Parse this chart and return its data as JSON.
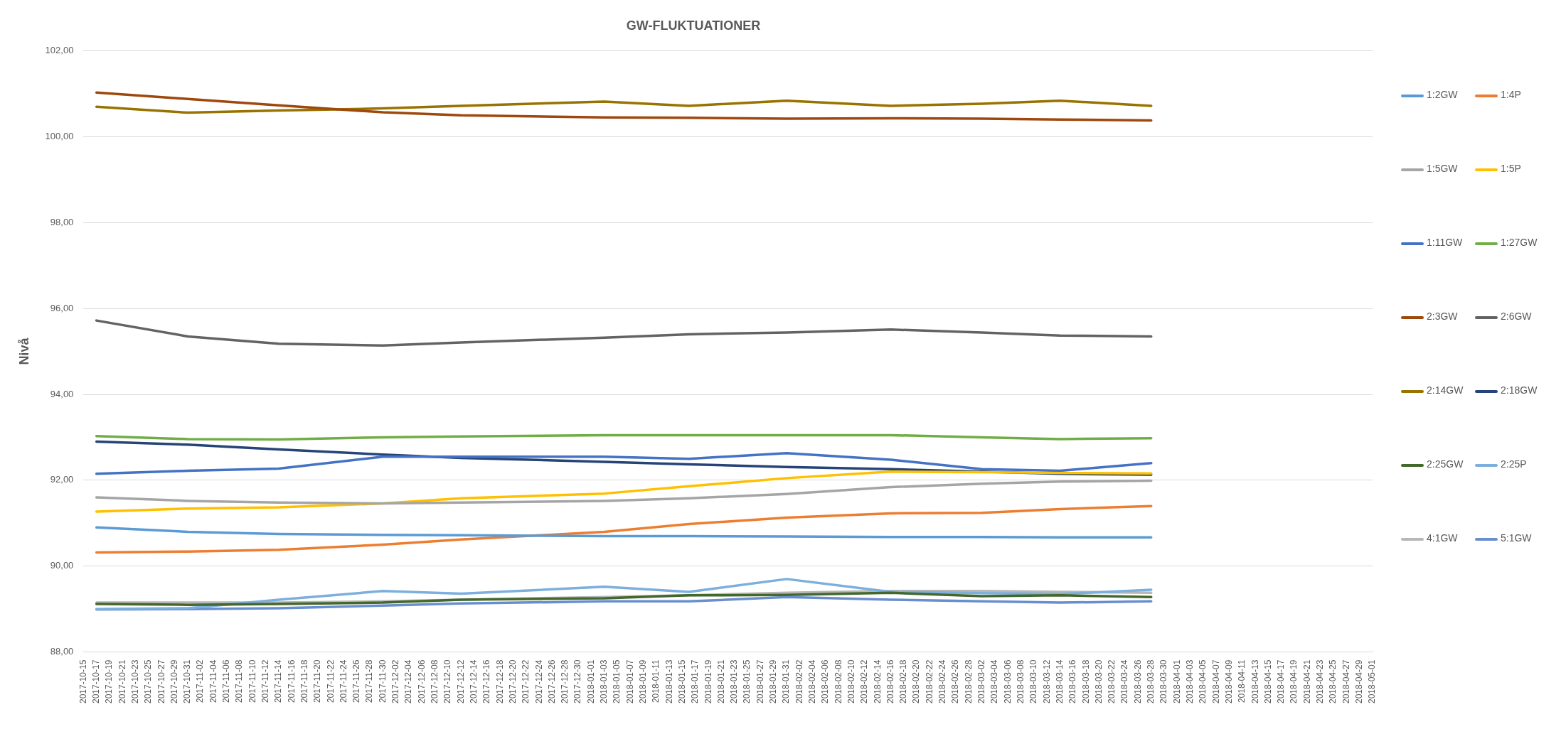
{
  "chart_data": {
    "type": "line",
    "title": "GW-FLUKTUATIONER",
    "ylabel": "Nivå",
    "x": [
      "2017-10-17",
      "2017-10-31",
      "2017-11-14",
      "2017-11-30",
      "2017-12-12",
      "2018-01-03",
      "2018-01-16",
      "2018-01-31",
      "2018-02-16",
      "2018-03-02",
      "2018-03-14",
      "2018-03-28"
    ],
    "xlim": [
      "2017-10-15",
      "2018-05-01"
    ],
    "xticks": [
      "2017-10-15",
      "2017-10-17",
      "2017-10-19",
      "2017-10-21",
      "2017-10-23",
      "2017-10-25",
      "2017-10-27",
      "2017-10-29",
      "2017-10-31",
      "2017-11-02",
      "2017-11-04",
      "2017-11-06",
      "2017-11-08",
      "2017-11-10",
      "2017-11-12",
      "2017-11-14",
      "2017-11-16",
      "2017-11-18",
      "2017-11-20",
      "2017-11-22",
      "2017-11-24",
      "2017-11-26",
      "2017-11-28",
      "2017-11-30",
      "2017-12-02",
      "2017-12-04",
      "2017-12-06",
      "2017-12-08",
      "2017-12-10",
      "2017-12-12",
      "2017-12-14",
      "2017-12-16",
      "2017-12-18",
      "2017-12-20",
      "2017-12-22",
      "2017-12-24",
      "2017-12-26",
      "2017-12-28",
      "2017-12-30",
      "2018-01-01",
      "2018-01-03",
      "2018-01-05",
      "2018-01-07",
      "2018-01-09",
      "2018-01-11",
      "2018-01-13",
      "2018-01-15",
      "2018-01-17",
      "2018-01-19",
      "2018-01-21",
      "2018-01-23",
      "2018-01-25",
      "2018-01-27",
      "2018-01-29",
      "2018-01-31",
      "2018-02-02",
      "2018-02-04",
      "2018-02-06",
      "2018-02-08",
      "2018-02-10",
      "2018-02-12",
      "2018-02-14",
      "2018-02-16",
      "2018-02-18",
      "2018-02-20",
      "2018-02-22",
      "2018-02-24",
      "2018-02-26",
      "2018-02-28",
      "2018-03-02",
      "2018-03-04",
      "2018-03-06",
      "2018-03-08",
      "2018-03-10",
      "2018-03-12",
      "2018-03-14",
      "2018-03-16",
      "2018-03-18",
      "2018-03-20",
      "2018-03-22",
      "2018-03-24",
      "2018-03-26",
      "2018-03-28",
      "2018-03-30",
      "2018-04-01",
      "2018-04-03",
      "2018-04-05",
      "2018-04-07",
      "2018-04-09",
      "2018-04-11",
      "2018-04-13",
      "2018-04-15",
      "2018-04-17",
      "2018-04-19",
      "2018-04-21",
      "2018-04-23",
      "2018-04-25",
      "2018-04-27",
      "2018-04-29",
      "2018-05-01"
    ],
    "ylim": [
      88,
      102
    ],
    "yticks": [
      {
        "value": 88,
        "label": "88,00"
      },
      {
        "value": 90,
        "label": "90,00"
      },
      {
        "value": 92,
        "label": "92,00"
      },
      {
        "value": 94,
        "label": "94,00"
      },
      {
        "value": 96,
        "label": "96,00"
      },
      {
        "value": 98,
        "label": "98,00"
      },
      {
        "value": 100,
        "label": "100,00"
      },
      {
        "value": 102,
        "label": "102,00"
      }
    ],
    "grid": "y",
    "legend": "right",
    "marker": "none",
    "line_style": "solid",
    "series": [
      {
        "name": "1:2GW",
        "color": "#5b9bd5",
        "values": [
          90.9,
          90.8,
          90.75,
          90.73,
          90.72,
          90.7,
          90.7,
          90.69,
          90.68,
          90.68,
          90.67,
          90.67
        ]
      },
      {
        "name": "1:4P",
        "color": "#ed7d31",
        "values": [
          90.32,
          90.34,
          90.38,
          90.5,
          90.62,
          90.8,
          90.98,
          91.13,
          91.23,
          91.24,
          91.33,
          91.4
        ]
      },
      {
        "name": "1:5GW",
        "color": "#a5a5a5",
        "values": [
          91.6,
          91.52,
          91.48,
          91.46,
          91.48,
          91.52,
          91.58,
          91.68,
          91.84,
          91.92,
          91.97,
          91.99
        ]
      },
      {
        "name": "1:5P",
        "color": "#ffc000",
        "values": [
          91.27,
          91.34,
          91.37,
          91.46,
          91.58,
          91.69,
          91.86,
          92.05,
          92.2,
          92.19,
          92.17,
          92.16
        ]
      },
      {
        "name": "1:11GW",
        "color": "#4472c4",
        "values": [
          92.15,
          92.22,
          92.27,
          92.55,
          92.55,
          92.55,
          92.5,
          92.63,
          92.48,
          92.26,
          92.22,
          92.4
        ]
      },
      {
        "name": "1:27GW",
        "color": "#70ad47",
        "values": [
          93.03,
          92.96,
          92.95,
          93.0,
          93.02,
          93.05,
          93.05,
          93.05,
          93.05,
          93.0,
          92.96,
          92.98
        ]
      },
      {
        "name": "2:3GW",
        "color": "#9e480e",
        "values": [
          101.03,
          100.88,
          100.73,
          100.57,
          100.5,
          100.45,
          100.44,
          100.42,
          100.43,
          100.42,
          100.4,
          100.38
        ]
      },
      {
        "name": "2:6GW",
        "color": "#636363",
        "values": [
          95.72,
          95.35,
          95.18,
          95.14,
          95.21,
          95.32,
          95.4,
          95.44,
          95.51,
          95.44,
          95.37,
          95.35
        ]
      },
      {
        "name": "2:14GW",
        "color": "#997300",
        "values": [
          100.7,
          100.56,
          100.61,
          100.66,
          100.72,
          100.82,
          100.72,
          100.84,
          100.72,
          100.77,
          100.84,
          100.72
        ]
      },
      {
        "name": "2:18GW",
        "color": "#264478",
        "values": [
          92.9,
          92.83,
          92.72,
          92.6,
          92.52,
          92.43,
          92.37,
          92.31,
          92.26,
          92.2,
          92.15,
          92.13
        ]
      },
      {
        "name": "2:25GW",
        "color": "#43682b",
        "values": [
          89.12,
          89.1,
          89.12,
          89.15,
          89.22,
          89.25,
          89.32,
          89.33,
          89.38,
          89.3,
          89.32,
          89.28
        ]
      },
      {
        "name": "2:25P",
        "color": "#7cafdd",
        "values": [
          89.0,
          89.02,
          89.22,
          89.42,
          89.36,
          89.52,
          89.4,
          89.7,
          89.4,
          89.37,
          89.35,
          89.45
        ]
      },
      {
        "name": "4:1GW",
        "color": "#b7b7b7",
        "values": [
          89.15,
          89.15,
          89.15,
          89.18,
          89.22,
          89.28,
          89.32,
          89.38,
          89.42,
          89.42,
          89.4,
          89.38
        ]
      },
      {
        "name": "5:1GW",
        "color": "#698ed0",
        "values": [
          88.99,
          89.0,
          89.02,
          89.08,
          89.13,
          89.18,
          89.18,
          89.28,
          89.22,
          89.18,
          89.15,
          89.18
        ]
      }
    ]
  }
}
